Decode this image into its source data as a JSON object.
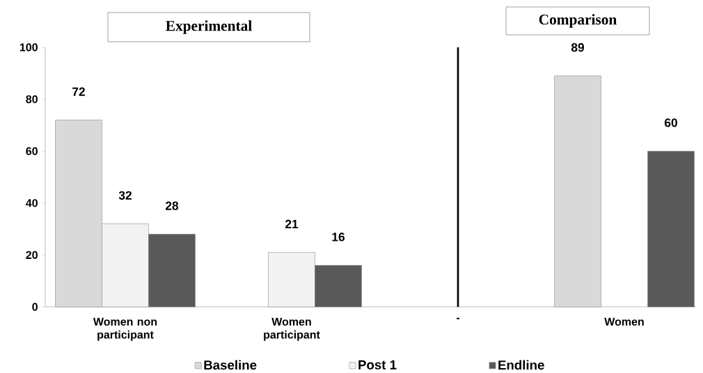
{
  "chart_data": {
    "type": "bar",
    "categories": [
      "Women non participant",
      "Women participant",
      "-",
      "Women"
    ],
    "series": [
      {
        "name": "Baseline",
        "color": "#d9d9d9",
        "values": [
          72,
          null,
          null,
          89
        ]
      },
      {
        "name": "Post 1",
        "color": "#f2f2f2",
        "values": [
          32,
          21,
          null,
          null
        ]
      },
      {
        "name": "Endline",
        "color": "#595959",
        "values": [
          28,
          16,
          null,
          60
        ]
      }
    ],
    "ylim": [
      0,
      100
    ],
    "yticks": [
      0,
      20,
      40,
      60,
      80,
      100
    ],
    "ref_lines": [
      {
        "axis": "x",
        "value": "-",
        "color": "#000000"
      }
    ],
    "data_labels": true,
    "grid": false,
    "legend": "bottom",
    "annotations": [
      "Experimental",
      "Comparison"
    ]
  }
}
